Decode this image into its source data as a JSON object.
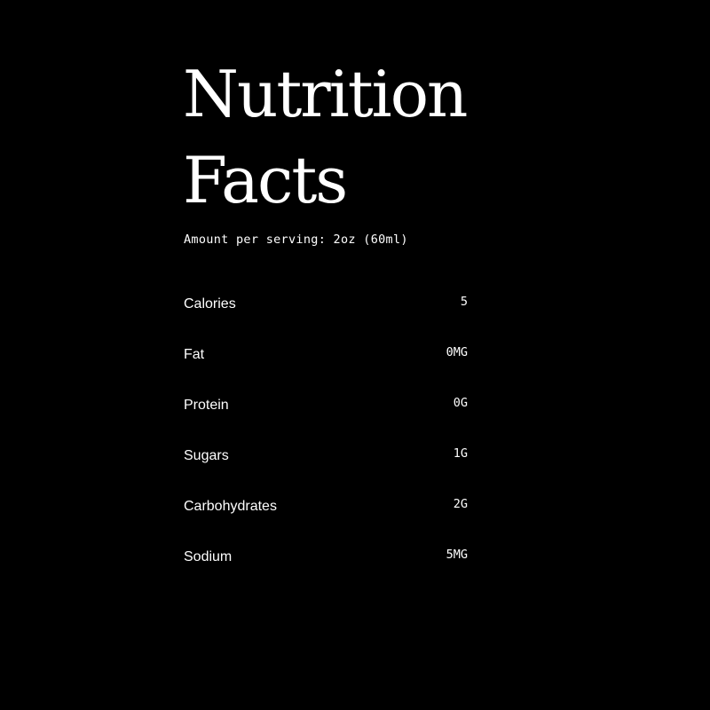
{
  "title": {
    "line1": "Nutrition",
    "line2": "Facts"
  },
  "serving": "Amount per serving: 2oz (60ml)",
  "rows": [
    {
      "label": "Calories",
      "value": "5"
    },
    {
      "label": "Fat",
      "value": "0MG"
    },
    {
      "label": "Protein",
      "value": "0G"
    },
    {
      "label": "Sugars",
      "value": "1G"
    },
    {
      "label": "Carbohydrates",
      "value": "2G"
    },
    {
      "label": "Sodium",
      "value": "5MG"
    }
  ]
}
